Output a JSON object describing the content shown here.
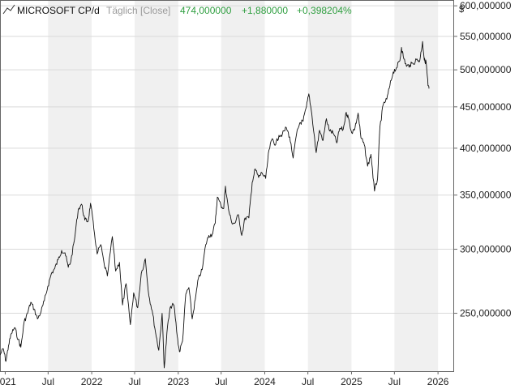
{
  "header": {
    "symbol": "MICROSOFT CP/d",
    "mode": "Täglich [Close]",
    "last": "474,000000",
    "change_abs": "+1,880000",
    "change_pct": "+0,398204%",
    "currency": "$"
  },
  "colors": {
    "positive": "#2e9e3f",
    "muted": "#9a9a9a",
    "line": "#111111",
    "band": "#f0f0f0",
    "grid": "#d9d9d9",
    "axis": "#666666"
  },
  "chart_data": {
    "type": "line",
    "title": "MICROSOFT CP/d",
    "xlabel": "",
    "ylabel": "$",
    "scale": "log",
    "ylim": [
      212,
      610
    ],
    "xlim": [
      "2020-12-10",
      "2026-03-10"
    ],
    "grid": true,
    "x_ticks": [
      {
        "date": "2021-01-01",
        "label": "2021"
      },
      {
        "date": "2021-07-01",
        "label": "Jul"
      },
      {
        "date": "2022-01-01",
        "label": "2022"
      },
      {
        "date": "2022-07-01",
        "label": "Jul"
      },
      {
        "date": "2023-01-01",
        "label": "2023"
      },
      {
        "date": "2023-07-01",
        "label": "Jul"
      },
      {
        "date": "2024-01-01",
        "label": "2024"
      },
      {
        "date": "2024-07-01",
        "label": "Jul"
      },
      {
        "date": "2025-01-01",
        "label": "2025"
      },
      {
        "date": "2025-07-01",
        "label": "Jul"
      },
      {
        "date": "2026-01-01",
        "label": "2026"
      }
    ],
    "y_ticks": [
      {
        "value": 250,
        "label": "250,000000"
      },
      {
        "value": 300,
        "label": "300,000000"
      },
      {
        "value": 350,
        "label": "350,000000"
      },
      {
        "value": 400,
        "label": "400,000000"
      },
      {
        "value": 450,
        "label": "450,000000"
      },
      {
        "value": 500,
        "label": "500,000000"
      },
      {
        "value": 550,
        "label": "550,000000"
      },
      {
        "value": 600,
        "label": "600,000000"
      }
    ],
    "series": [
      {
        "name": "",
        "points": [
          [
            "2020-12-10",
            222
          ],
          [
            "2020-12-24",
            226
          ],
          [
            "2021-01-04",
            218
          ],
          [
            "2021-01-15",
            228
          ],
          [
            "2021-01-27",
            236
          ],
          [
            "2021-02-10",
            240
          ],
          [
            "2021-02-25",
            232
          ],
          [
            "2021-03-08",
            227
          ],
          [
            "2021-03-22",
            244
          ],
          [
            "2021-04-05",
            250
          ],
          [
            "2021-04-19",
            258
          ],
          [
            "2021-05-03",
            253
          ],
          [
            "2021-05-17",
            246
          ],
          [
            "2021-06-01",
            251
          ],
          [
            "2021-06-15",
            259
          ],
          [
            "2021-06-30",
            270
          ],
          [
            "2021-07-15",
            280
          ],
          [
            "2021-07-29",
            284
          ],
          [
            "2021-08-12",
            291
          ],
          [
            "2021-08-27",
            299
          ],
          [
            "2021-09-10",
            297
          ],
          [
            "2021-09-24",
            285
          ],
          [
            "2021-10-05",
            290
          ],
          [
            "2021-10-20",
            308
          ],
          [
            "2021-11-05",
            336
          ],
          [
            "2021-11-19",
            341
          ],
          [
            "2021-12-03",
            326
          ],
          [
            "2021-12-17",
            325
          ],
          [
            "2021-12-27",
            342
          ],
          [
            "2022-01-10",
            318
          ],
          [
            "2022-01-24",
            296
          ],
          [
            "2022-02-08",
            304
          ],
          [
            "2022-02-23",
            287
          ],
          [
            "2022-03-08",
            278
          ],
          [
            "2022-03-29",
            311
          ],
          [
            "2022-04-12",
            282
          ],
          [
            "2022-04-28",
            289
          ],
          [
            "2022-05-11",
            256
          ],
          [
            "2022-05-26",
            272
          ],
          [
            "2022-06-13",
            242
          ],
          [
            "2022-06-27",
            265
          ],
          [
            "2022-07-14",
            254
          ],
          [
            "2022-07-29",
            280
          ],
          [
            "2022-08-15",
            292
          ],
          [
            "2022-08-30",
            263
          ],
          [
            "2022-09-13",
            252
          ],
          [
            "2022-09-27",
            237
          ],
          [
            "2022-10-11",
            225
          ],
          [
            "2022-10-25",
            250
          ],
          [
            "2022-11-03",
            214
          ],
          [
            "2022-11-17",
            241
          ],
          [
            "2022-11-30",
            255
          ],
          [
            "2022-12-14",
            256
          ],
          [
            "2022-12-28",
            234
          ],
          [
            "2023-01-06",
            224
          ],
          [
            "2023-01-19",
            231
          ],
          [
            "2023-02-02",
            264
          ],
          [
            "2023-02-15",
            269
          ],
          [
            "2023-03-01",
            246
          ],
          [
            "2023-03-14",
            260
          ],
          [
            "2023-03-27",
            276
          ],
          [
            "2023-04-12",
            283
          ],
          [
            "2023-04-27",
            304
          ],
          [
            "2023-05-10",
            312
          ],
          [
            "2023-05-24",
            313
          ],
          [
            "2023-06-06",
            323
          ],
          [
            "2023-06-15",
            348
          ],
          [
            "2023-06-30",
            340
          ],
          [
            "2023-07-12",
            337
          ],
          [
            "2023-07-19",
            359
          ],
          [
            "2023-08-01",
            336
          ],
          [
            "2023-08-14",
            324
          ],
          [
            "2023-08-28",
            323
          ],
          [
            "2023-09-12",
            331
          ],
          [
            "2023-09-26",
            312
          ],
          [
            "2023-10-10",
            328
          ],
          [
            "2023-10-26",
            328
          ],
          [
            "2023-11-09",
            363
          ],
          [
            "2023-11-22",
            377
          ],
          [
            "2023-12-06",
            368
          ],
          [
            "2023-12-20",
            373
          ],
          [
            "2024-01-05",
            367
          ],
          [
            "2024-01-19",
            398
          ],
          [
            "2024-02-02",
            411
          ],
          [
            "2024-02-16",
            404
          ],
          [
            "2024-03-01",
            415
          ],
          [
            "2024-03-15",
            416
          ],
          [
            "2024-04-01",
            424
          ],
          [
            "2024-04-15",
            413
          ],
          [
            "2024-04-30",
            389
          ],
          [
            "2024-05-14",
            416
          ],
          [
            "2024-05-28",
            430
          ],
          [
            "2024-06-11",
            432
          ],
          [
            "2024-06-25",
            450
          ],
          [
            "2024-07-05",
            467
          ],
          [
            "2024-07-18",
            440
          ],
          [
            "2024-08-05",
            395
          ],
          [
            "2024-08-19",
            421
          ],
          [
            "2024-09-03",
            409
          ],
          [
            "2024-09-17",
            435
          ],
          [
            "2024-10-01",
            420
          ],
          [
            "2024-10-15",
            418
          ],
          [
            "2024-10-31",
            406
          ],
          [
            "2024-11-12",
            423
          ],
          [
            "2024-11-27",
            422
          ],
          [
            "2024-12-10",
            443
          ],
          [
            "2024-12-18",
            437
          ],
          [
            "2025-01-02",
            418
          ],
          [
            "2025-01-16",
            424
          ],
          [
            "2025-01-29",
            442
          ],
          [
            "2025-02-10",
            412
          ],
          [
            "2025-02-24",
            404
          ],
          [
            "2025-03-10",
            380
          ],
          [
            "2025-03-24",
            393
          ],
          [
            "2025-04-08",
            354
          ],
          [
            "2025-04-21",
            367
          ],
          [
            "2025-05-01",
            425
          ],
          [
            "2025-05-15",
            453
          ],
          [
            "2025-05-30",
            460
          ],
          [
            "2025-06-12",
            478
          ],
          [
            "2025-06-26",
            497
          ],
          [
            "2025-07-10",
            503
          ],
          [
            "2025-07-24",
            513
          ],
          [
            "2025-07-31",
            533
          ],
          [
            "2025-08-07",
            520
          ],
          [
            "2025-08-21",
            505
          ],
          [
            "2025-09-04",
            507
          ],
          [
            "2025-09-18",
            509
          ],
          [
            "2025-10-02",
            515
          ],
          [
            "2025-10-16",
            513
          ],
          [
            "2025-10-28",
            542
          ],
          [
            "2025-11-04",
            514
          ],
          [
            "2025-11-12",
            511
          ],
          [
            "2025-11-20",
            478
          ],
          [
            "2025-11-24",
            474
          ]
        ]
      }
    ]
  }
}
